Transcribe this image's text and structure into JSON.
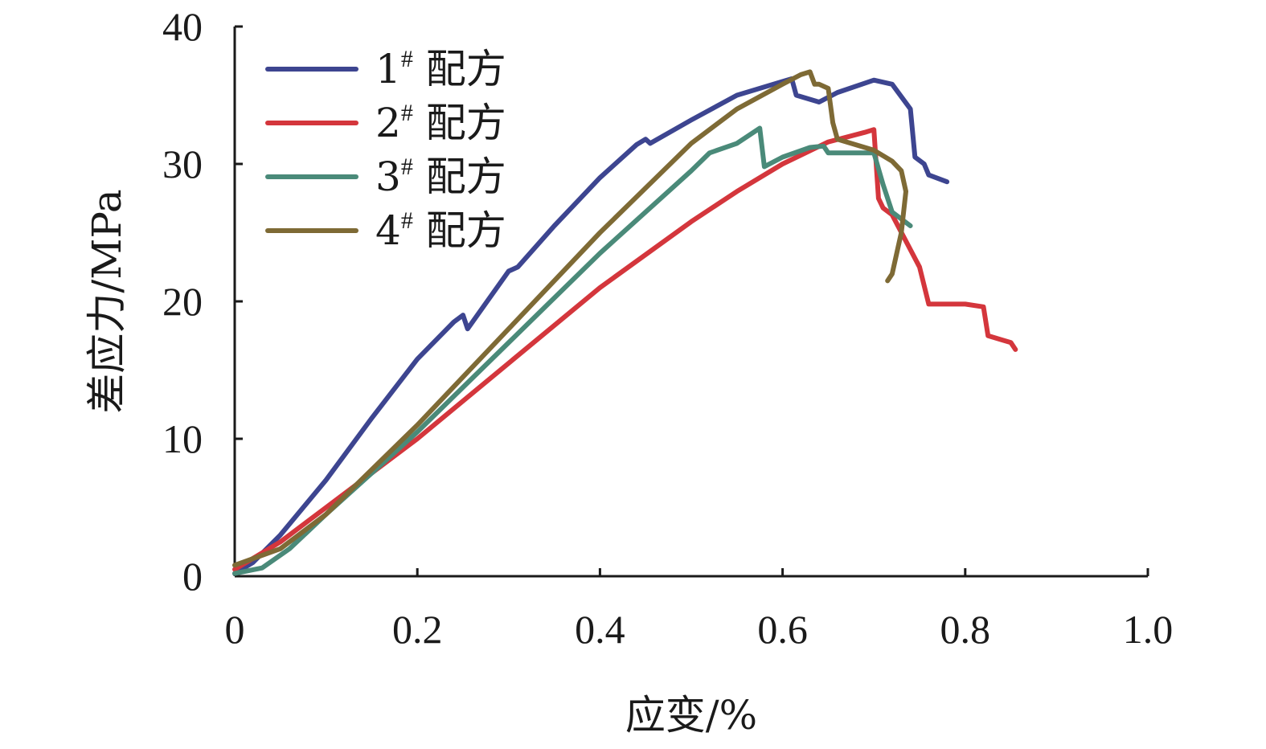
{
  "chart_data": {
    "type": "line",
    "xlabel": "应变/%",
    "ylabel": "差应力/MPa",
    "xlim": [
      0,
      1.0
    ],
    "ylim": [
      0,
      40
    ],
    "x_ticks": [
      "0",
      "0.2",
      "0.4",
      "0.6",
      "0.8",
      "1.0"
    ],
    "y_ticks": [
      "0",
      "10",
      "20",
      "30",
      "40"
    ],
    "grid": false,
    "legend_position": "top-left",
    "series": [
      {
        "name": "1# 配方",
        "label_main": "1",
        "label_sup": "#",
        "label_suffix": " 配方",
        "color": "#3d4590",
        "x": [
          0.0,
          0.02,
          0.05,
          0.1,
          0.15,
          0.2,
          0.24,
          0.25,
          0.255,
          0.3,
          0.31,
          0.35,
          0.4,
          0.44,
          0.45,
          0.455,
          0.5,
          0.55,
          0.6,
          0.61,
          0.615,
          0.64,
          0.66,
          0.7,
          0.72,
          0.74,
          0.745,
          0.755,
          0.76,
          0.78
        ],
        "y": [
          0.2,
          1.0,
          3.0,
          7.0,
          11.5,
          15.8,
          18.5,
          19.0,
          18.0,
          22.2,
          22.5,
          25.5,
          29.0,
          31.4,
          31.8,
          31.5,
          33.2,
          35.0,
          36.0,
          36.2,
          35.0,
          34.5,
          35.2,
          36.1,
          35.8,
          34.0,
          30.5,
          30.0,
          29.2,
          28.7
        ]
      },
      {
        "name": "2# 配方",
        "label_main": "2",
        "label_sup": "#",
        "label_suffix": " 配方",
        "color": "#d4363c",
        "x": [
          0.0,
          0.05,
          0.1,
          0.2,
          0.3,
          0.4,
          0.5,
          0.55,
          0.6,
          0.65,
          0.69,
          0.7,
          0.705,
          0.71,
          0.72,
          0.75,
          0.76,
          0.8,
          0.82,
          0.825,
          0.84,
          0.85,
          0.855
        ],
        "y": [
          0.5,
          2.5,
          5.0,
          10.0,
          15.5,
          21.0,
          25.8,
          28.0,
          30.0,
          31.6,
          32.3,
          32.5,
          27.5,
          26.8,
          26.3,
          22.5,
          19.8,
          19.8,
          19.6,
          17.5,
          17.2,
          17.0,
          16.5
        ]
      },
      {
        "name": "3# 配方",
        "label_main": "3",
        "label_sup": "#",
        "label_suffix": " 配方",
        "color": "#4a8a79",
        "x": [
          0.0,
          0.03,
          0.06,
          0.1,
          0.2,
          0.3,
          0.4,
          0.5,
          0.52,
          0.55,
          0.575,
          0.58,
          0.6,
          0.63,
          0.645,
          0.65,
          0.7,
          0.71,
          0.72,
          0.74
        ],
        "y": [
          0.2,
          0.6,
          2.0,
          4.5,
          10.5,
          17.0,
          23.5,
          29.5,
          30.8,
          31.5,
          32.6,
          29.8,
          30.5,
          31.2,
          31.3,
          30.8,
          30.8,
          28.5,
          26.5,
          25.5
        ]
      },
      {
        "name": "4# 配方",
        "label_main": "4",
        "label_sup": "#",
        "label_suffix": " 配方",
        "color": "#7e6a35",
        "x": [
          0.0,
          0.05,
          0.1,
          0.2,
          0.3,
          0.4,
          0.5,
          0.55,
          0.6,
          0.62,
          0.63,
          0.635,
          0.64,
          0.65,
          0.655,
          0.66,
          0.7,
          0.72,
          0.73,
          0.735,
          0.73,
          0.72,
          0.715,
          0.72
        ],
        "y": [
          0.8,
          2.0,
          4.5,
          11.0,
          18.0,
          25.0,
          31.5,
          34.0,
          35.8,
          36.5,
          36.7,
          35.8,
          35.8,
          35.5,
          33.0,
          31.8,
          31.0,
          30.2,
          29.5,
          28.0,
          25.0,
          22.0,
          21.5,
          22.0
        ]
      }
    ]
  }
}
